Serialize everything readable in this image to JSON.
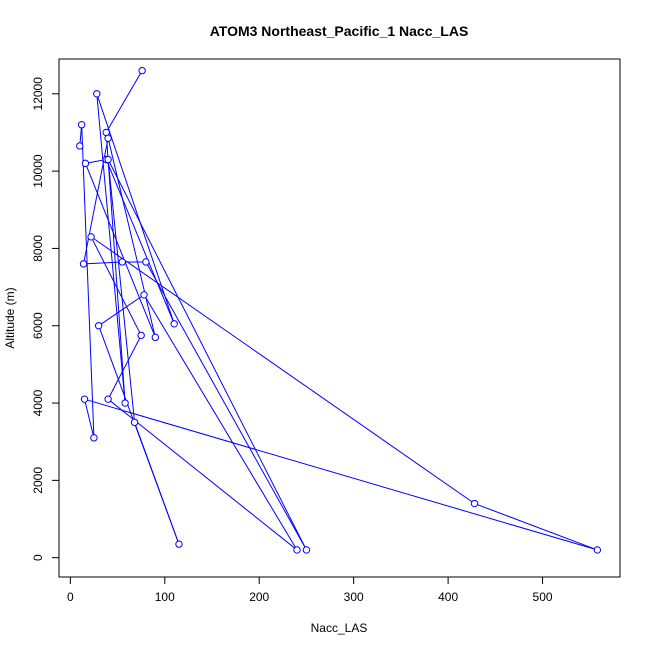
{
  "chart_data": {
    "type": "line",
    "title": "ATOM3 Northeast_Pacific_1 Nacc_LAS",
    "xlabel": "Nacc_LAS",
    "ylabel": "Altitude (m)",
    "xlim": [
      -12,
      582
    ],
    "ylim": [
      -500,
      12900
    ],
    "xticks": [
      0,
      100,
      200,
      300,
      400,
      500
    ],
    "yticks": [
      0,
      2000,
      4000,
      6000,
      8000,
      10000,
      12000
    ],
    "xtick_labels": [
      "0",
      "100",
      "200",
      "300",
      "400",
      "500"
    ],
    "ytick_labels": [
      "0",
      "2000",
      "4000",
      "6000",
      "8000",
      "10000",
      "12000"
    ],
    "grid": false,
    "color": "#0000ff",
    "marker": "open-circle",
    "x": [
      76,
      38,
      58,
      28,
      110,
      38,
      16,
      90,
      40,
      14,
      55,
      80,
      250,
      40,
      68,
      115,
      30,
      78,
      240,
      40,
      75,
      22,
      428,
      558,
      15,
      25,
      12,
      10
    ],
    "y": [
      12600,
      11000,
      4000,
      12000,
      6050,
      10300,
      10200,
      5700,
      10850,
      7600,
      7650,
      7650,
      200,
      10300,
      3500,
      350,
      6000,
      6800,
      200,
      4100,
      5750,
      8300,
      1400,
      200,
      4100,
      3100,
      11200,
      10650
    ]
  }
}
